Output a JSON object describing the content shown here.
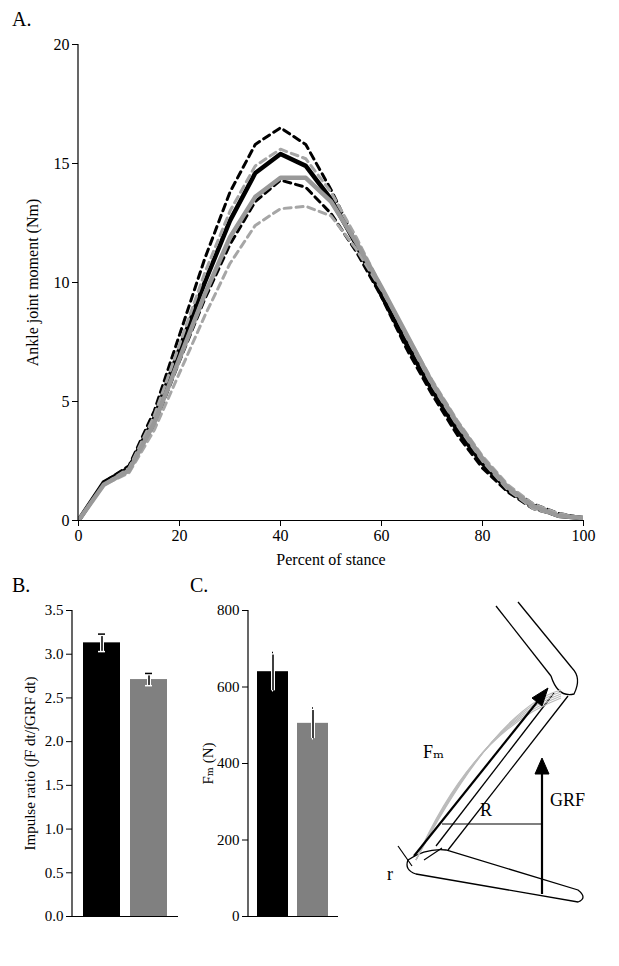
{
  "chart_data": [
    {
      "type": "line",
      "title": "A.",
      "x": [
        0,
        5,
        10,
        15,
        20,
        25,
        30,
        35,
        40,
        45,
        50,
        55,
        60,
        65,
        70,
        75,
        80,
        85,
        90,
        95,
        100
      ],
      "series": [
        {
          "color": "#000000",
          "line_style": "dashed",
          "values": [
            0,
            1.6,
            2.3,
            4.6,
            7.8,
            11.0,
            13.8,
            15.8,
            16.5,
            15.8,
            13.9,
            11.7,
            9.4,
            7.2,
            5.3,
            3.6,
            2.2,
            1.2,
            0.5,
            0.2,
            0.1
          ]
        },
        {
          "color": "#000000",
          "line_style": "dashed",
          "values": [
            0,
            1.6,
            2.1,
            4.0,
            6.7,
            9.3,
            11.6,
            13.4,
            14.3,
            14.0,
            12.9,
            11.3,
            9.4,
            7.5,
            5.6,
            3.9,
            2.5,
            1.4,
            0.7,
            0.3,
            0.1
          ]
        },
        {
          "color": "#000000",
          "line_style": "solid",
          "values": [
            0,
            1.6,
            2.2,
            4.3,
            7.2,
            10.0,
            12.6,
            14.6,
            15.4,
            14.9,
            13.5,
            11.6,
            9.5,
            7.4,
            5.5,
            3.8,
            2.4,
            1.3,
            0.6,
            0.2,
            0.1
          ]
        },
        {
          "color": "#a6a6a6",
          "line_style": "dashed",
          "values": [
            0,
            1.5,
            2.2,
            4.4,
            7.4,
            10.4,
            13.0,
            14.9,
            15.6,
            15.2,
            13.8,
            11.9,
            9.8,
            7.7,
            5.7,
            4.0,
            2.5,
            1.3,
            0.5,
            0.2,
            0.1
          ]
        },
        {
          "color": "#a6a6a6",
          "line_style": "dashed",
          "values": [
            0,
            1.5,
            2.0,
            3.8,
            6.2,
            8.6,
            10.8,
            12.4,
            13.1,
            13.2,
            12.8,
            11.4,
            9.7,
            7.8,
            5.9,
            4.2,
            2.7,
            1.5,
            0.7,
            0.3,
            0.1
          ]
        },
        {
          "color": "#999999",
          "line_style": "solid",
          "values": [
            0,
            1.5,
            2.1,
            4.1,
            6.8,
            9.5,
            11.9,
            13.6,
            14.4,
            14.4,
            13.4,
            11.7,
            9.8,
            7.8,
            5.8,
            4.1,
            2.6,
            1.4,
            0.6,
            0.2,
            0.1
          ]
        }
      ],
      "xlabel": "Percent of stance",
      "ylabel": "Ankle joint moment (Nm)",
      "xlim": [
        0,
        100
      ],
      "xticks": [
        0,
        20,
        40,
        60,
        80,
        100
      ],
      "ylim": [
        0,
        20
      ],
      "yticks": [
        0,
        5,
        10,
        15,
        20
      ]
    },
    {
      "type": "bar",
      "title": "B.",
      "categories": [
        null,
        null
      ],
      "values": [
        3.13,
        2.71
      ],
      "errors": [
        0.1,
        0.07
      ],
      "colors": [
        "#000000",
        "#808080"
      ],
      "ylabel": "Impulse ratio (∫F dt/∫GRF dt)",
      "ylim": [
        0,
        3.5
      ],
      "yticks": [
        {
          "value": 0,
          "label": "0.0"
        },
        {
          "value": 0.5,
          "label": "0.5"
        },
        {
          "value": 1,
          "label": "1.0"
        },
        {
          "value": 1.5,
          "label": "1.5"
        },
        {
          "value": 2,
          "label": "2.0"
        },
        {
          "value": 2.5,
          "label": "2.5"
        },
        {
          "value": 3,
          "label": "3.0"
        },
        {
          "value": 3.5,
          "label": "3.5"
        }
      ]
    },
    {
      "type": "bar",
      "title": "C.",
      "categories": [
        null,
        null
      ],
      "values": [
        640,
        505
      ],
      "errors": [
        50,
        40
      ],
      "colors": [
        "#000000",
        "#808080"
      ],
      "ylabel": "Fₘ (N)",
      "ylim": [
        0,
        800
      ],
      "yticks": [
        0,
        200,
        400,
        600,
        800
      ],
      "annotations": [
        "Fₘ",
        "GRF",
        "R",
        "r"
      ]
    }
  ]
}
